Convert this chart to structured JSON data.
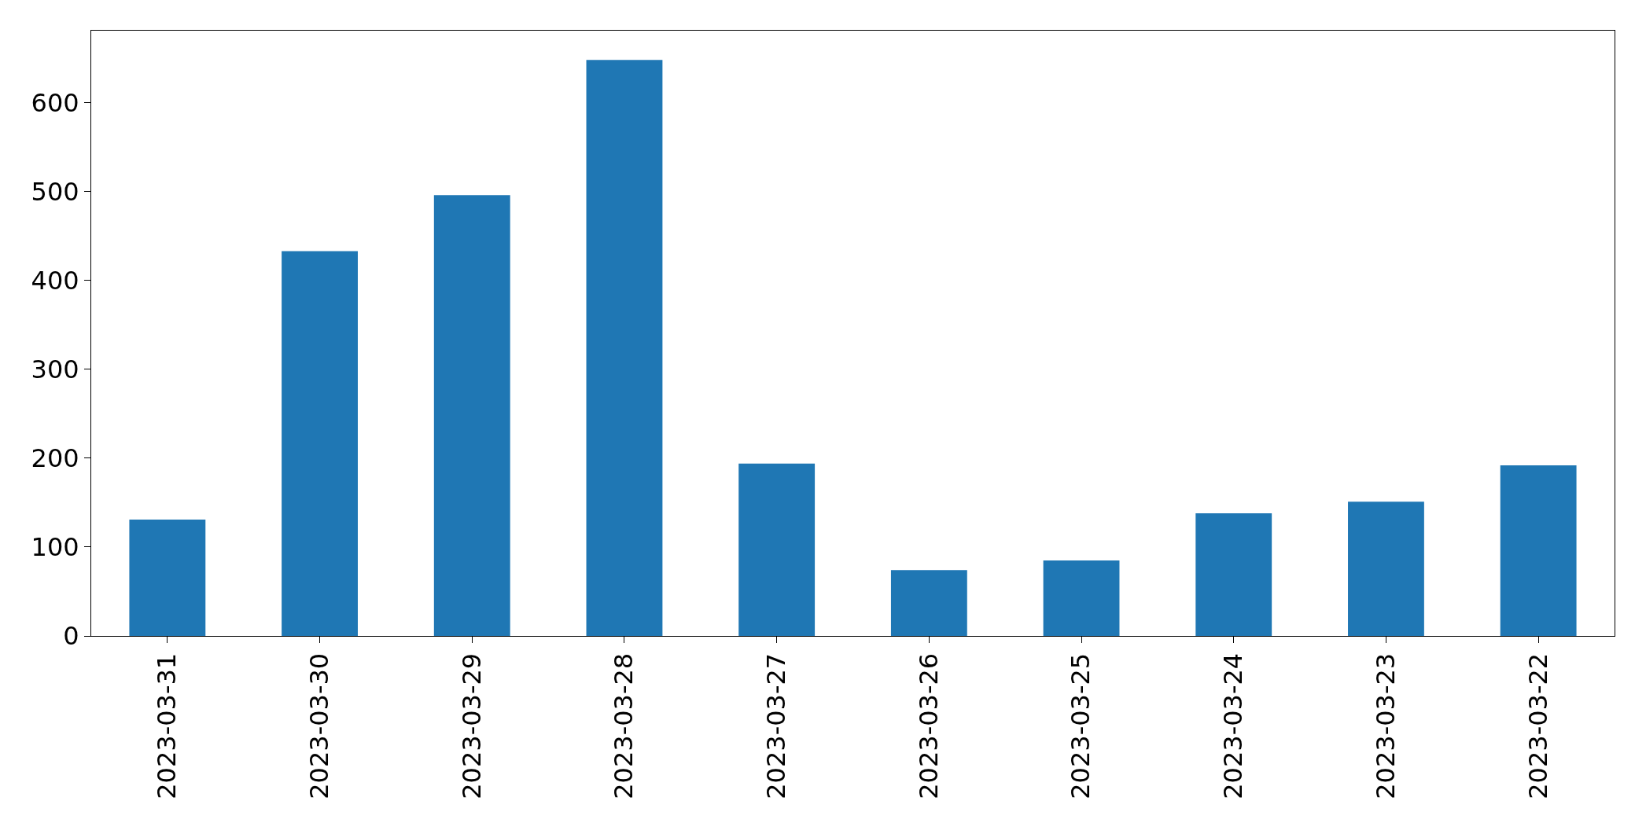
{
  "chart_data": {
    "type": "bar",
    "categories": [
      "2023-03-31",
      "2023-03-30",
      "2023-03-29",
      "2023-03-28",
      "2023-03-27",
      "2023-03-26",
      "2023-03-25",
      "2023-03-24",
      "2023-03-23",
      "2023-03-22"
    ],
    "values": [
      131,
      433,
      496,
      648,
      194,
      74,
      85,
      138,
      151,
      192
    ],
    "color": "#1f77b4",
    "ylim": [
      0,
      681
    ],
    "yticks": [
      0,
      100,
      200,
      300,
      400,
      500,
      600
    ]
  }
}
